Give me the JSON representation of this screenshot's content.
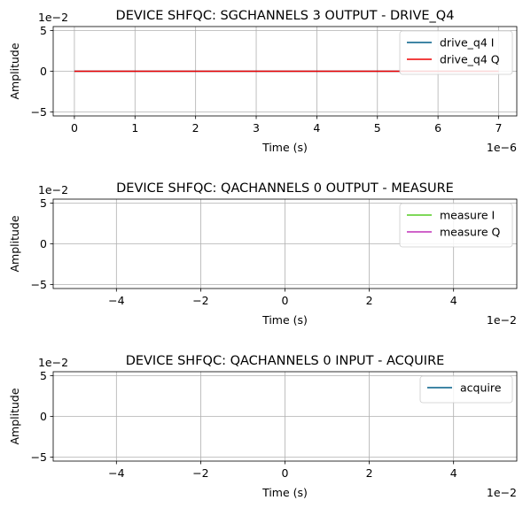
{
  "charts": [
    {
      "title": "DEVICE SHFQC: SGCHANNELS 3 OUTPUT - DRIVE_Q4",
      "xlabel": "Time (s)",
      "ylabel": "Amplitude",
      "x_offset_text": "1e−6",
      "y_offset_text": "1e−2",
      "x_ticks": [
        "0",
        "1",
        "2",
        "3",
        "4",
        "5",
        "6",
        "7"
      ],
      "y_ticks": [
        "−5",
        "0",
        "5"
      ]
    },
    {
      "title": "DEVICE SHFQC: QACHANNELS 0 OUTPUT - MEASURE",
      "xlabel": "Time (s)",
      "ylabel": "Amplitude",
      "x_offset_text": "1e−2",
      "y_offset_text": "1e−2",
      "x_ticks": [
        "−4",
        "−2",
        "0",
        "2",
        "4"
      ],
      "y_ticks": [
        "−5",
        "0",
        "5"
      ]
    },
    {
      "title": "DEVICE SHFQC: QACHANNELS 0 INPUT - ACQUIRE",
      "xlabel": "Time (s)",
      "ylabel": "Amplitude",
      "x_offset_text": "1e−2",
      "y_offset_text": "1e−2",
      "x_ticks": [
        "−4",
        "−2",
        "0",
        "2",
        "4"
      ],
      "y_ticks": [
        "−5",
        "0",
        "5"
      ]
    }
  ],
  "chart_data": [
    {
      "type": "line",
      "x_scale": 1e-06,
      "y_scale": 0.01,
      "xlim": [
        -0.35,
        7.3
      ],
      "ylim": [
        -5.5,
        5.5
      ],
      "x_tick_values": [
        0,
        1,
        2,
        3,
        4,
        5,
        6,
        7
      ],
      "y_tick_values": [
        -5,
        0,
        5
      ],
      "grid": true,
      "legend": "upper right",
      "series": [
        {
          "name": "drive_q4 I",
          "color": "#005f87",
          "x": [
            0,
            7.0
          ],
          "y": [
            0,
            0
          ]
        },
        {
          "name": "drive_q4 Q",
          "color": "#ee0000",
          "x": [
            0,
            7.0
          ],
          "y": [
            0,
            0
          ]
        }
      ]
    },
    {
      "type": "line",
      "x_scale": 0.01,
      "y_scale": 0.01,
      "xlim": [
        -5.5,
        5.5
      ],
      "ylim": [
        -5.5,
        5.5
      ],
      "x_tick_values": [
        -4,
        -2,
        0,
        2,
        4
      ],
      "y_tick_values": [
        -5,
        0,
        5
      ],
      "grid": true,
      "legend": "upper right",
      "series": [
        {
          "name": "measure I",
          "color": "#55cc22",
          "x": [],
          "y": []
        },
        {
          "name": "measure Q",
          "color": "#c030b8",
          "x": [],
          "y": []
        }
      ]
    },
    {
      "type": "line",
      "x_scale": 0.01,
      "y_scale": 0.01,
      "xlim": [
        -5.5,
        5.5
      ],
      "ylim": [
        -5.5,
        5.5
      ],
      "x_tick_values": [
        -4,
        -2,
        0,
        2,
        4
      ],
      "y_tick_values": [
        -5,
        0,
        5
      ],
      "grid": true,
      "legend": "upper right",
      "series": [
        {
          "name": "acquire",
          "color": "#005f87",
          "x": [],
          "y": []
        }
      ]
    }
  ]
}
